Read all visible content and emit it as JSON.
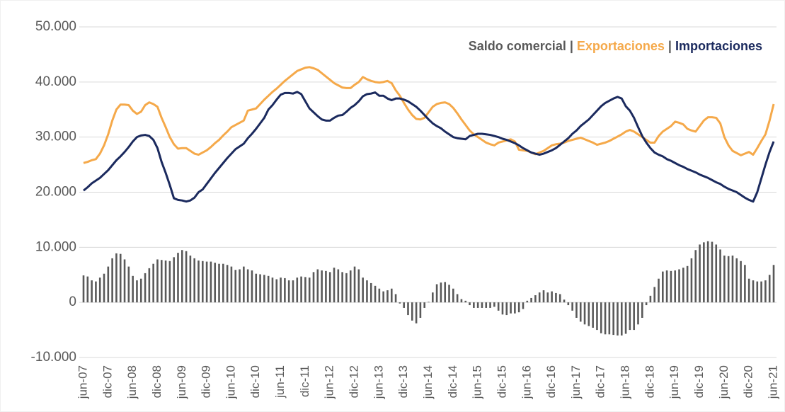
{
  "chart_data": {
    "type": "line",
    "legend_separator": "|",
    "categories": [
      "jun-07",
      null,
      null,
      null,
      null,
      null,
      "dic-07",
      null,
      null,
      null,
      null,
      null,
      "jun-08",
      null,
      null,
      null,
      null,
      null,
      "dic-08",
      null,
      null,
      null,
      null,
      null,
      "jun-09",
      null,
      null,
      null,
      null,
      null,
      "dic-09",
      null,
      null,
      null,
      null,
      null,
      "jun-10",
      null,
      null,
      null,
      null,
      null,
      "dic-10",
      null,
      null,
      null,
      null,
      null,
      "jun-11",
      null,
      null,
      null,
      null,
      null,
      "dic-11",
      null,
      null,
      null,
      null,
      null,
      "jun-12",
      null,
      null,
      null,
      null,
      null,
      "dic-12",
      null,
      null,
      null,
      null,
      null,
      "jun-13",
      null,
      null,
      null,
      null,
      null,
      "dic-13",
      null,
      null,
      null,
      null,
      null,
      "jun-14",
      null,
      null,
      null,
      null,
      null,
      "dic-14",
      null,
      null,
      null,
      null,
      null,
      "jun-15",
      null,
      null,
      null,
      null,
      null,
      "dic-15",
      null,
      null,
      null,
      null,
      null,
      "jun-16",
      null,
      null,
      null,
      null,
      null,
      "dic-16",
      null,
      null,
      null,
      null,
      null,
      "jun-17",
      null,
      null,
      null,
      null,
      null,
      "dic-17",
      null,
      null,
      null,
      null,
      null,
      "jun-18",
      null,
      null,
      null,
      null,
      null,
      "dic-18",
      null,
      null,
      null,
      null,
      null,
      "jun-19",
      null,
      null,
      null,
      null,
      null,
      "dic-19",
      null,
      null,
      null,
      null,
      null,
      "jun-20",
      null,
      null,
      null,
      null,
      null,
      "dic-20",
      null,
      null,
      null,
      null,
      null,
      "jun-21"
    ],
    "series": [
      {
        "name": "Saldo comercial",
        "type": "bar",
        "color": "#595959",
        "values": [
          4900,
          4700,
          4000,
          3800,
          4500,
          5200,
          6500,
          8000,
          8900,
          8800,
          7800,
          6500,
          4800,
          4000,
          4300,
          5300,
          6200,
          7000,
          7800,
          7700,
          7600,
          7500,
          8200,
          9000,
          9500,
          9300,
          8500,
          8000,
          7600,
          7500,
          7400,
          7400,
          7200,
          7000,
          7000,
          6800,
          6500,
          5900,
          6000,
          6500,
          6000,
          5800,
          5200,
          5100,
          5000,
          4800,
          4500,
          4200,
          4500,
          4400,
          4000,
          4000,
          4500,
          4700,
          4600,
          4500,
          5500,
          6000,
          5800,
          5700,
          5500,
          6300,
          6000,
          5500,
          5300,
          5800,
          6500,
          6000,
          4500,
          4000,
          3500,
          3000,
          2500,
          2000,
          2200,
          2500,
          1500,
          -200,
          -1000,
          -2300,
          -3300,
          -3800,
          -2800,
          -1000,
          100,
          1800,
          3300,
          3600,
          3700,
          3200,
          2500,
          1500,
          600,
          300,
          -500,
          -1000,
          -1000,
          -1000,
          -1000,
          -1000,
          -800,
          -1500,
          -2200,
          -2300,
          -2000,
          -2000,
          -1800,
          -1200,
          300,
          800,
          1300,
          1800,
          2200,
          1800,
          2000,
          1700,
          1500,
          500,
          -500,
          -1500,
          -2800,
          -3500,
          -4000,
          -4300,
          -4600,
          -5000,
          -5600,
          -5800,
          -5800,
          -5900,
          -6000,
          -6000,
          -5700,
          -5000,
          -5000,
          -4000,
          -2800,
          -500,
          1200,
          2800,
          4300,
          5600,
          5800,
          5700,
          5800,
          6000,
          6300,
          6600,
          8000,
          9500,
          10500,
          10900,
          11100,
          11000,
          10500,
          9600,
          8500,
          8400,
          8500,
          8000,
          7500,
          6800,
          4300,
          4000,
          3800,
          3800,
          4000,
          5000,
          6800
        ]
      },
      {
        "name": "Exportaciones",
        "type": "line",
        "color": "#f5a94a",
        "values": [
          25300,
          25500,
          25800,
          26000,
          27000,
          28500,
          30500,
          33000,
          35000,
          35900,
          35900,
          35800,
          34800,
          34200,
          34600,
          35800,
          36300,
          36000,
          35500,
          33500,
          31800,
          30000,
          28700,
          27900,
          28000,
          28000,
          27500,
          27000,
          26800,
          27200,
          27600,
          28200,
          28900,
          29500,
          30300,
          31000,
          31800,
          32200,
          32600,
          33000,
          34800,
          35000,
          35200,
          36000,
          36800,
          37500,
          38200,
          38800,
          39500,
          40200,
          40800,
          41400,
          42000,
          42300,
          42600,
          42700,
          42500,
          42200,
          41600,
          41000,
          40400,
          39800,
          39400,
          39000,
          38900,
          38900,
          39500,
          40000,
          40900,
          40500,
          40200,
          40000,
          39900,
          40000,
          40200,
          39800,
          38500,
          37500,
          36200,
          35000,
          34000,
          33300,
          33200,
          33500,
          34500,
          35500,
          36000,
          36200,
          36300,
          36000,
          35300,
          34300,
          33200,
          32200,
          31200,
          30500,
          30000,
          29500,
          29000,
          28700,
          28500,
          29000,
          29200,
          29400,
          29600,
          29200,
          27700,
          27600,
          27500,
          27200,
          26900,
          27200,
          27500,
          28000,
          28500,
          28700,
          28800,
          29000,
          29300,
          29500,
          29700,
          29900,
          29600,
          29300,
          29000,
          28600,
          28800,
          29000,
          29300,
          29700,
          30100,
          30500,
          31000,
          31300,
          31000,
          30500,
          30000,
          29500,
          29000,
          29000,
          30200,
          31000,
          31500,
          32000,
          32800,
          32600,
          32300,
          31500,
          31200,
          31000,
          32000,
          33000,
          33600,
          33600,
          33500,
          32500,
          30000,
          28500,
          27500,
          27100,
          26700,
          27000,
          27300,
          26800,
          28000,
          29300,
          30500,
          33000,
          36000
        ]
      },
      {
        "name": "Importaciones",
        "type": "line",
        "color": "#1b2a5e",
        "values": [
          20300,
          20900,
          21600,
          22100,
          22600,
          23300,
          24000,
          24900,
          25800,
          26500,
          27300,
          28200,
          29200,
          30000,
          30300,
          30400,
          30200,
          29500,
          28000,
          25500,
          23500,
          21300,
          18900,
          18600,
          18500,
          18300,
          18500,
          19000,
          20000,
          20500,
          21500,
          22500,
          23500,
          24400,
          25300,
          26200,
          27000,
          27800,
          28300,
          28800,
          29800,
          30600,
          31500,
          32500,
          33500,
          35000,
          35800,
          36800,
          37700,
          38000,
          38000,
          37900,
          38200,
          37800,
          36500,
          35200,
          34500,
          33800,
          33200,
          33000,
          33000,
          33500,
          33900,
          34000,
          34600,
          35300,
          35800,
          36500,
          37400,
          37800,
          37900,
          38100,
          37500,
          37500,
          37000,
          36700,
          37000,
          37000,
          36800,
          36500,
          36000,
          35500,
          34800,
          34000,
          33200,
          32500,
          32000,
          31600,
          31000,
          30500,
          30000,
          29800,
          29700,
          29600,
          30200,
          30400,
          30600,
          30600,
          30500,
          30400,
          30200,
          30000,
          29700,
          29500,
          29200,
          28900,
          28500,
          28000,
          27600,
          27200,
          27000,
          26800,
          27000,
          27300,
          27600,
          28000,
          28600,
          29200,
          29800,
          30600,
          31200,
          32000,
          32600,
          33200,
          34000,
          34800,
          35600,
          36200,
          36600,
          37000,
          37300,
          37000,
          35600,
          34800,
          33500,
          31800,
          30200,
          29000,
          28000,
          27200,
          26800,
          26500,
          26000,
          25700,
          25300,
          24900,
          24600,
          24200,
          23900,
          23600,
          23200,
          22900,
          22600,
          22200,
          21800,
          21500,
          21000,
          20600,
          20300,
          20000,
          19500,
          19000,
          18600,
          18300,
          20000,
          22500,
          25000,
          27300,
          29200
        ]
      }
    ],
    "ylim": [
      -10000,
      50000
    ],
    "yticks": [
      {
        "value": -10000,
        "label": "-10.000"
      },
      0,
      {
        "value": 10000,
        "label": "10.000"
      },
      {
        "value": 20000,
        "label": "20.000"
      },
      {
        "value": 30000,
        "label": "30.000"
      },
      {
        "value": 40000,
        "label": "40.000"
      },
      {
        "value": 50000,
        "label": "50.000"
      }
    ],
    "grid": true
  }
}
